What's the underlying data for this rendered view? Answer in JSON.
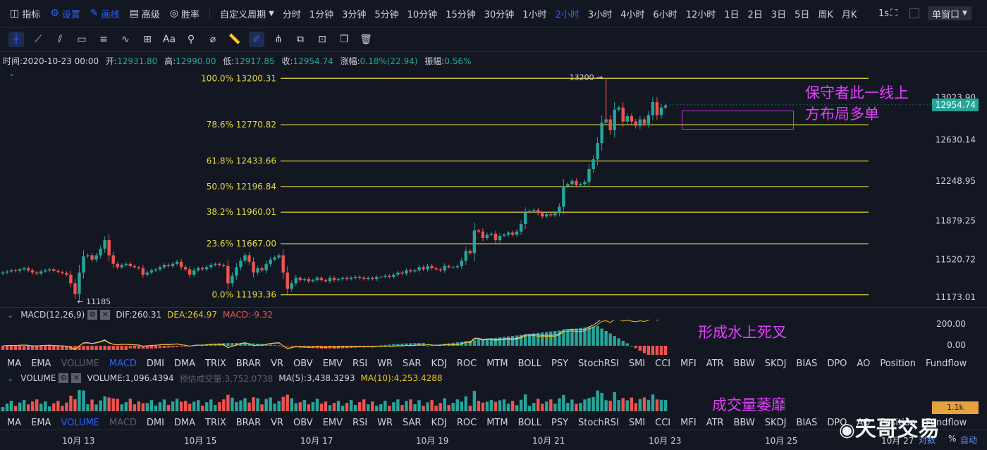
{
  "toolbar": {
    "left_items": [
      {
        "label": "指标",
        "icon": "chart-icon"
      },
      {
        "label": "设置",
        "icon": "gear-icon"
      },
      {
        "label": "画线",
        "icon": "pen-icon"
      },
      {
        "label": "高级",
        "icon": "layout-icon"
      },
      {
        "label": "胜率",
        "icon": "target-icon"
      }
    ],
    "custom_period": "自定义周期",
    "periods": [
      "分时",
      "1分钟",
      "3分钟",
      "5分钟",
      "10分钟",
      "15分钟",
      "30分钟",
      "1小时",
      "2小时",
      "3小时",
      "4小时",
      "6小时",
      "12小时",
      "1日",
      "2日",
      "3日",
      "5日",
      "周K",
      "月K"
    ],
    "active_period": "2小时",
    "refresh": "1s",
    "window_mode": "单窗口"
  },
  "drawtools": [
    "crosshair",
    "trend-line",
    "parallel",
    "rectangle",
    "horizontal-lines",
    "wave",
    "measure",
    "text",
    "pattern",
    "eraser-shape",
    "ruler",
    "pencil",
    "fork",
    "copy",
    "lock",
    "clone",
    "trash"
  ],
  "info": {
    "time_label": "时间:",
    "time": "2020-10-23 00:00",
    "open_label": "开:",
    "open": "12931.80",
    "high_label": "高:",
    "high": "12990.00",
    "low_label": "低:",
    "low": "12917.85",
    "close_label": "收:",
    "close": "12954.74",
    "change_label": "涨幅:",
    "change": "0.18%(22.94)",
    "amp_label": "振幅:",
    "amp": "0.56%"
  },
  "colors": {
    "up": "#26a69a",
    "down": "#ef5350",
    "fib": "#e6d93c",
    "annotation": "#e040fb",
    "accent": "#2962ff",
    "price_tag": "#26a69a",
    "dea": "#f0c419",
    "macd_val": "#ef5350"
  },
  "chart_data": {
    "type": "candlestick",
    "price_axis": [
      "13023.90",
      "12630.14",
      "12248.95",
      "11879.25",
      "11520.72",
      "11173.01"
    ],
    "ylim": [
      11080,
      13300
    ],
    "last_price": "12954.74",
    "high_mark": "13200",
    "low_mark": "11185",
    "fib_levels": [
      {
        "pct": "100.0%",
        "price": "13200.31"
      },
      {
        "pct": "78.6%",
        "price": "12770.82"
      },
      {
        "pct": "61.8%",
        "price": "12433.66"
      },
      {
        "pct": "50.0%",
        "price": "12196.84"
      },
      {
        "pct": "38.2%",
        "price": "11960.01"
      },
      {
        "pct": "23.6%",
        "price": "11667.00"
      },
      {
        "pct": "0.0%",
        "price": "11193.36"
      }
    ],
    "x_labels": [
      "10月 13",
      "10月 15",
      "10月 17",
      "10月 19",
      "10月 21",
      "10月 23",
      "10月 25",
      "10月 27"
    ],
    "closes": [
      11400,
      11410,
      11420,
      11415,
      11430,
      11440,
      11420,
      11400,
      11390,
      11410,
      11420,
      11430,
      11415,
      11405,
      11395,
      11380,
      11300,
      11200,
      11400,
      11550,
      11560,
      11520,
      11560,
      11620,
      11700,
      11560,
      11480,
      11450,
      11470,
      11480,
      11460,
      11450,
      11440,
      11380,
      11400,
      11420,
      11430,
      11450,
      11470,
      11460,
      11480,
      11500,
      11450,
      11430,
      11380,
      11420,
      11440,
      11430,
      11450,
      11470,
      11480,
      11470,
      11460,
      11300,
      11370,
      11450,
      11510,
      11560,
      11500,
      11400,
      11440,
      11420,
      11480,
      11520,
      11540,
      11560,
      11400,
      11250,
      11300,
      11350,
      11330,
      11340,
      11320,
      11330,
      11350,
      11330,
      11320,
      11350,
      11330,
      11340,
      11350,
      11340,
      11350,
      11360,
      11350,
      11340,
      11350,
      11340,
      11360,
      11360,
      11370,
      11360,
      11380,
      11400,
      11390,
      11420,
      11410,
      11420,
      11450,
      11430,
      11460,
      11440,
      11430,
      11420,
      11460,
      11450,
      11450,
      11460,
      11510,
      11600,
      11580,
      11790,
      11780,
      11720,
      11750,
      11760,
      11700,
      11740,
      11750,
      11770,
      11750,
      11780,
      11850,
      11960,
      11970,
      11980,
      11950,
      11920,
      11940,
      11930,
      11950,
      12010,
      12200,
      12220,
      12250,
      12210,
      12220,
      12240,
      12360,
      12450,
      12600,
      12790,
      12820,
      12720,
      12910,
      12930,
      12800,
      12850,
      12800,
      12760,
      12820,
      12780,
      12860,
      12980,
      12860,
      12930,
      12950
    ],
    "macd": {
      "title": "MACD(12,26,9)",
      "dif": "DIF:260.31",
      "dea": "DEA:264.97",
      "macd": "MACD:-9.32",
      "axis": [
        "200.00",
        "0.00"
      ]
    },
    "volume": {
      "title": "VOLUME",
      "value": "VOLUME:1,096.4394",
      "est": "预估成交量:3,752.0738",
      "ma5": "MA(5):3,438.3293",
      "ma10": "MA(10):4,253.4288",
      "tag": "1.1k"
    }
  },
  "indicator_tabs": [
    "MA",
    "EMA",
    "VOLUME",
    "MACD",
    "DMI",
    "DMA",
    "TRIX",
    "BRAR",
    "VR",
    "OBV",
    "EMV",
    "RSI",
    "WR",
    "SAR",
    "KDJ",
    "ROC",
    "MTM",
    "BOLL",
    "PSY",
    "StochRSI",
    "SMI",
    "CCI",
    "MFI",
    "ATR",
    "BBW",
    "SKDJ",
    "BIAS",
    "DPO",
    "AO",
    "Position",
    "Fundflow"
  ],
  "annotations": {
    "main": [
      "保守者此一线上",
      "方布局多单"
    ],
    "macd": "形成水上死叉",
    "volume": "成交量萎靡"
  },
  "footer": {
    "ratio": "对数",
    "pct": "%",
    "auto": "自动",
    "watermark": "天哥交易"
  }
}
